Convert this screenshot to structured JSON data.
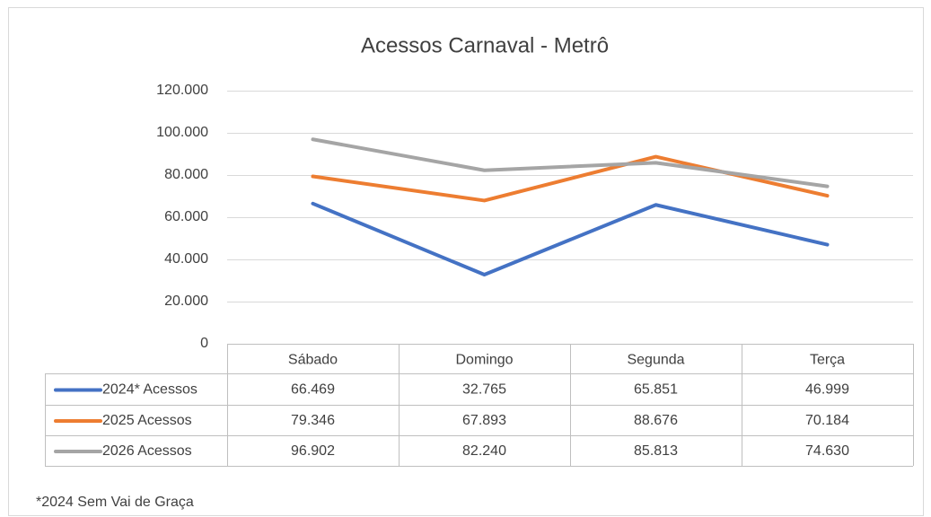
{
  "chart_data": {
    "type": "line",
    "title": "Acessos Carnaval - Metrô",
    "categories": [
      "Sábado",
      "Domingo",
      "Segunda",
      "Terça"
    ],
    "series": [
      {
        "name": "2024* Acessos",
        "color": "#4472c4",
        "values": [
          66469,
          32765,
          65851,
          46999
        ],
        "value_labels": [
          "66.469",
          "32.765",
          "65.851",
          "46.999"
        ]
      },
      {
        "name": "2025 Acessos",
        "color": "#ed7d31",
        "values": [
          79346,
          67893,
          88676,
          70184
        ],
        "value_labels": [
          "79.346",
          "67.893",
          "88.676",
          "70.184"
        ]
      },
      {
        "name": "2026 Acessos",
        "color": "#a5a5a5",
        "values": [
          96902,
          82240,
          85813,
          74630
        ],
        "value_labels": [
          "96.902",
          "82.240",
          "85.813",
          "74.630"
        ]
      }
    ],
    "ylim": [
      0,
      120000
    ],
    "yticks": [
      0,
      {
        "value": 20000,
        "label": "20.000"
      },
      {
        "value": 40000,
        "label": "40.000"
      },
      {
        "value": 60000,
        "label": "60.000"
      },
      {
        "value": 80000,
        "label": "80.000"
      },
      {
        "value": 100000,
        "label": "100.000"
      },
      {
        "value": 120000,
        "label": "120.000"
      }
    ],
    "grid": true,
    "annotation": "*2024 Sem Vai de Graça"
  }
}
